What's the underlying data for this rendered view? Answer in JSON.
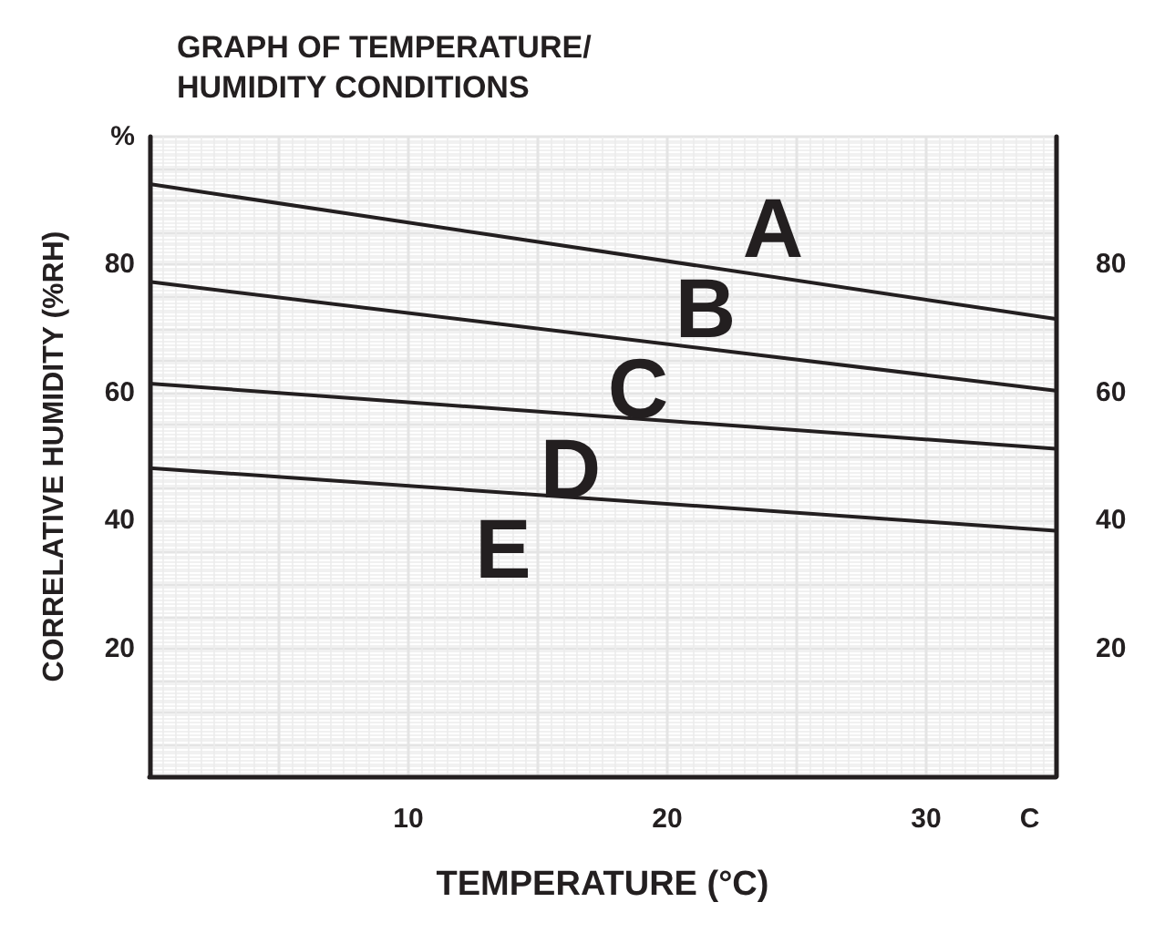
{
  "chart_data": {
    "type": "line",
    "title": "GRAPH OF TEMPERATURE/\nHUMIDITY CONDITIONS",
    "xlabel": "TEMPERATURE (°C)",
    "ylabel": "CORRELATIVE HUMIDITY (%RH)",
    "x": [
      0,
      35
    ],
    "series": [
      {
        "color": "#231f20",
        "values": [
          92.6,
          71.5
        ]
      },
      {
        "color": "#231f20",
        "values": [
          77.3,
          60.3
        ]
      },
      {
        "color": "#231f20",
        "values": [
          61.4,
          51.2
        ]
      },
      {
        "color": "#231f20",
        "values": [
          48.2,
          38.4
        ]
      }
    ],
    "xlim": [
      0,
      35
    ],
    "xticks": [
      10,
      20,
      30,
      {
        "value": 34,
        "label": "C"
      }
    ],
    "ylim": [
      0,
      100
    ],
    "yticks": [
      20,
      40,
      60,
      80,
      {
        "value": 100,
        "label": "%"
      }
    ],
    "y2lim": [
      0,
      100
    ],
    "y2ticks": [
      20,
      40,
      60,
      80
    ],
    "annotations": [
      "A",
      "B",
      "C",
      "D",
      "E"
    ],
    "grid": true,
    "marker": "none",
    "line_style": "solid"
  }
}
